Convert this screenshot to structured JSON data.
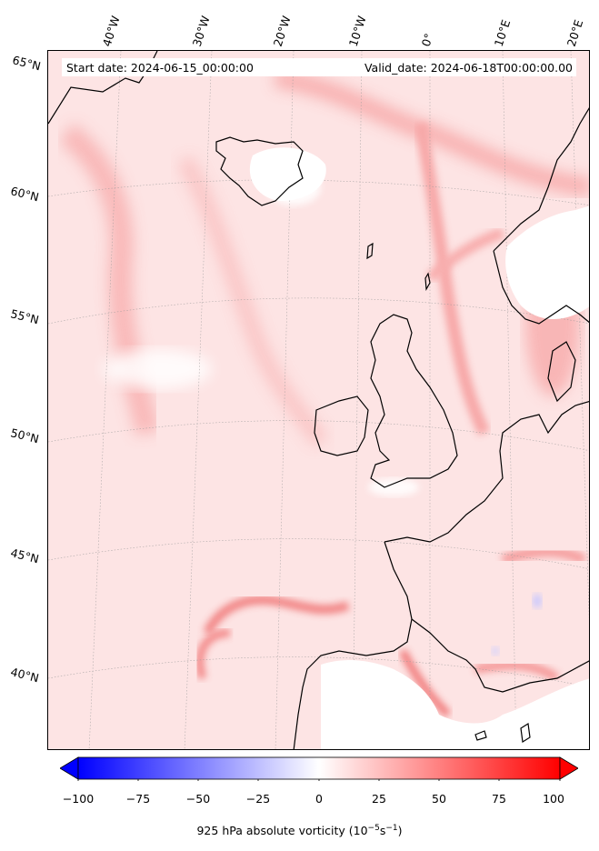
{
  "map": {
    "start_date": "Start date: 2024-06-15_00:00:00",
    "valid_date": "Valid_date: 2024-06-18T00:00:00.00",
    "longitude_labels": [
      "40°W",
      "30°W",
      "20°W",
      "10°W",
      "0°",
      "10°E",
      "20°E"
    ],
    "latitude_labels": [
      "65°N",
      "60°N",
      "55°N",
      "50°N",
      "45°N",
      "40°N"
    ],
    "field": "925 hPa absolute vorticity",
    "grid_lines": true,
    "colors": {
      "background_field": "#fde3e3",
      "strong_positive": "#f26a6a",
      "moderate_positive": "#f9b9b9",
      "negative": "#6e6eff",
      "coastline": "#000000",
      "land_blank": "#ffffff"
    }
  },
  "colorbar": {
    "title": "925 hPa absolute vorticity (10",
    "unit_exp1": "−5",
    "unit_mid": "s",
    "unit_exp2": "−1",
    "unit_close": ")",
    "ticks": [
      "−100",
      "−75",
      "−50",
      "−25",
      "0",
      "25",
      "50",
      "75",
      "100"
    ],
    "range": [
      -100,
      100
    ],
    "colormap": "bwr",
    "extend": "both"
  }
}
